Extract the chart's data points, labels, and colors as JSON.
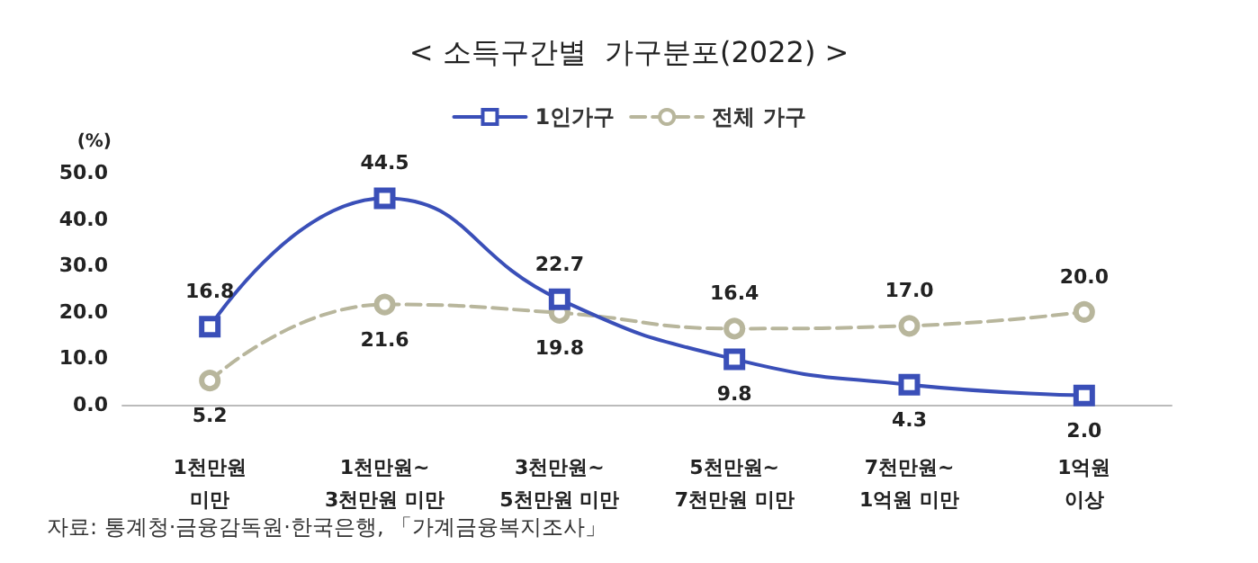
{
  "chart_data": {
    "type": "line",
    "title": "< 소득구간별  가구분포(2022) >",
    "ylabel": "(%)",
    "categories": [
      "1천만원\n미만",
      "1천만원~\n3천만원 미만",
      "3천만원~\n5천만원 미만",
      "5천만원~\n7천만원 미만",
      "7천만원~\n1억원 미만",
      "1억원\n이상"
    ],
    "series": [
      {
        "name": "1인가구",
        "color": "#3a4fb8",
        "values": [
          16.8,
          44.5,
          22.7,
          9.8,
          4.3,
          2.0
        ],
        "value_labels": [
          "16.8",
          "44.5",
          "22.7",
          "9.8",
          "4.3",
          "2.0"
        ],
        "marker": "square",
        "line_style": "solid"
      },
      {
        "name": "전체 가구",
        "color": "#b8b69c",
        "values": [
          5.2,
          21.6,
          19.8,
          16.4,
          17.0,
          20.0
        ],
        "value_labels": [
          "5.2",
          "21.6",
          "19.8",
          "16.4",
          "17.0",
          "20.0"
        ],
        "marker": "circle",
        "line_style": "dashed"
      }
    ],
    "ylim": [
      0,
      50
    ],
    "yticks": [
      {
        "value": 0,
        "label": "0.0"
      },
      {
        "value": 10,
        "label": "10.0"
      },
      {
        "value": 20,
        "label": "20.0"
      },
      {
        "value": 30,
        "label": "30.0"
      },
      {
        "value": 40,
        "label": "40.0"
      },
      {
        "value": 50,
        "label": "50.0"
      }
    ],
    "grid": false,
    "legend": "top",
    "annotations": [
      "자료: 통계청·금융감독원·한국은행, 「가계금융복지조사」"
    ]
  }
}
